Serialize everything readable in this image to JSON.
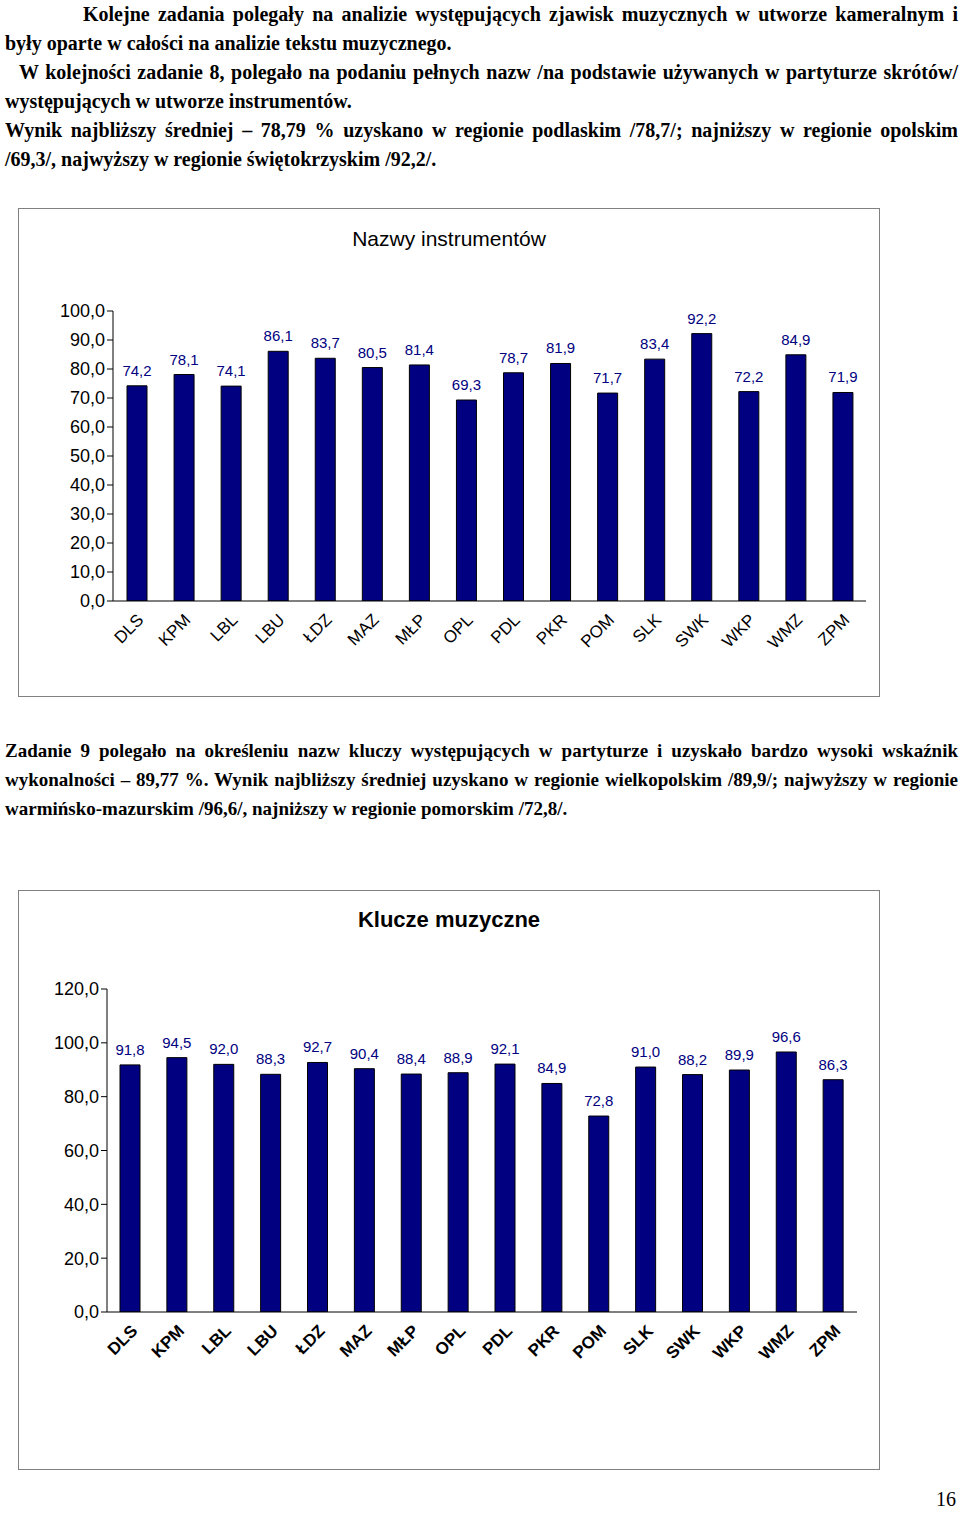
{
  "document": {
    "intro_paragraphs": [
      "Kolejne zadania polegały na analizie występujących zjawisk muzycznych w utworze kameralnym i były oparte w całości na analizie tekstu muzycznego.",
      "W kolejności zadanie 8, polegało na podaniu pełnych nazw /na podstawie używanych w partyturze skrótów/ występujących w utworze instrumentów.",
      "Wynik najbliższy średniej – 78,79 % uzyskano w regionie podlaskim /78,7/; najniższy w regionie opolskim /69,3/, najwyższy w regionie świętokrzyskim /92,2/."
    ],
    "paragraph_2": "Zadanie 9 polegało na określeniu nazw kluczy występujących w partyturze i uzyskało bardzo wysoki wskaźnik wykonalności – 89,77 %. Wynik najbliższy średniej uzyskano w regionie wielkopolskim /89,9/; najwyższy w regionie warmińsko-mazurskim /96,6/, najniższy w regionie pomorskim /72,8/.",
    "page_number": "16"
  },
  "chart_data": [
    {
      "type": "bar",
      "title": "Nazwy instrumentów",
      "categories": [
        "DLS",
        "KPM",
        "LBL",
        "LBU",
        "ŁDZ",
        "MAZ",
        "MŁP",
        "OPL",
        "PDL",
        "PKR",
        "POM",
        "SLK",
        "SWK",
        "WKP",
        "WMZ",
        "ZPM"
      ],
      "values": [
        74.2,
        78.1,
        74.1,
        86.1,
        83.7,
        80.5,
        81.4,
        69.3,
        78.7,
        81.9,
        71.7,
        83.4,
        92.2,
        72.2,
        84.9,
        71.9
      ],
      "value_labels": [
        "74,2",
        "78,1",
        "74,1",
        "86,1",
        "83,7",
        "80,5",
        "81,4",
        "69,3",
        "78,7",
        "81,9",
        "71,7",
        "83,4",
        "92,2",
        "72,2",
        "84,9",
        "71,9"
      ],
      "color": "#000080",
      "ylim": [
        0,
        100
      ],
      "yticks": [
        {
          "value": 0,
          "label": "0,0"
        },
        {
          "value": 10,
          "label": "10,0"
        },
        {
          "value": 20,
          "label": "20,0"
        },
        {
          "value": 30,
          "label": "30,0"
        },
        {
          "value": 40,
          "label": "40,0"
        },
        {
          "value": 50,
          "label": "50,0"
        },
        {
          "value": 60,
          "label": "60,0"
        },
        {
          "value": 70,
          "label": "70,0"
        },
        {
          "value": 80,
          "label": "80,0"
        },
        {
          "value": 90,
          "label": "90,0"
        },
        {
          "value": 100,
          "label": "100,0"
        }
      ],
      "grid": false,
      "data_labels": true
    },
    {
      "type": "bar",
      "title": "Klucze muzyczne",
      "categories": [
        "DLS",
        "KPM",
        "LBL",
        "LBU",
        "ŁDZ",
        "MAZ",
        "MŁP",
        "OPL",
        "PDL",
        "PKR",
        "POM",
        "SLK",
        "SWK",
        "WKP",
        "WMZ",
        "ZPM"
      ],
      "values": [
        91.8,
        94.5,
        92.0,
        88.3,
        92.7,
        90.4,
        88.4,
        88.9,
        92.1,
        84.9,
        72.8,
        91.0,
        88.2,
        89.9,
        96.6,
        86.3
      ],
      "value_labels": [
        "91,8",
        "94,5",
        "92,0",
        "88,3",
        "92,7",
        "90,4",
        "88,4",
        "88,9",
        "92,1",
        "84,9",
        "72,8",
        "91,0",
        "88,2",
        "89,9",
        "96,6",
        "86,3"
      ],
      "color": "#000080",
      "ylim": [
        0,
        120
      ],
      "yticks": [
        {
          "value": 0,
          "label": "0,0"
        },
        {
          "value": 20,
          "label": "20,0"
        },
        {
          "value": 40,
          "label": "40,0"
        },
        {
          "value": 60,
          "label": "60,0"
        },
        {
          "value": 80,
          "label": "80,0"
        },
        {
          "value": 100,
          "label": "100,0"
        },
        {
          "value": 120,
          "label": "120,0"
        }
      ],
      "grid": false,
      "data_labels": true
    }
  ]
}
